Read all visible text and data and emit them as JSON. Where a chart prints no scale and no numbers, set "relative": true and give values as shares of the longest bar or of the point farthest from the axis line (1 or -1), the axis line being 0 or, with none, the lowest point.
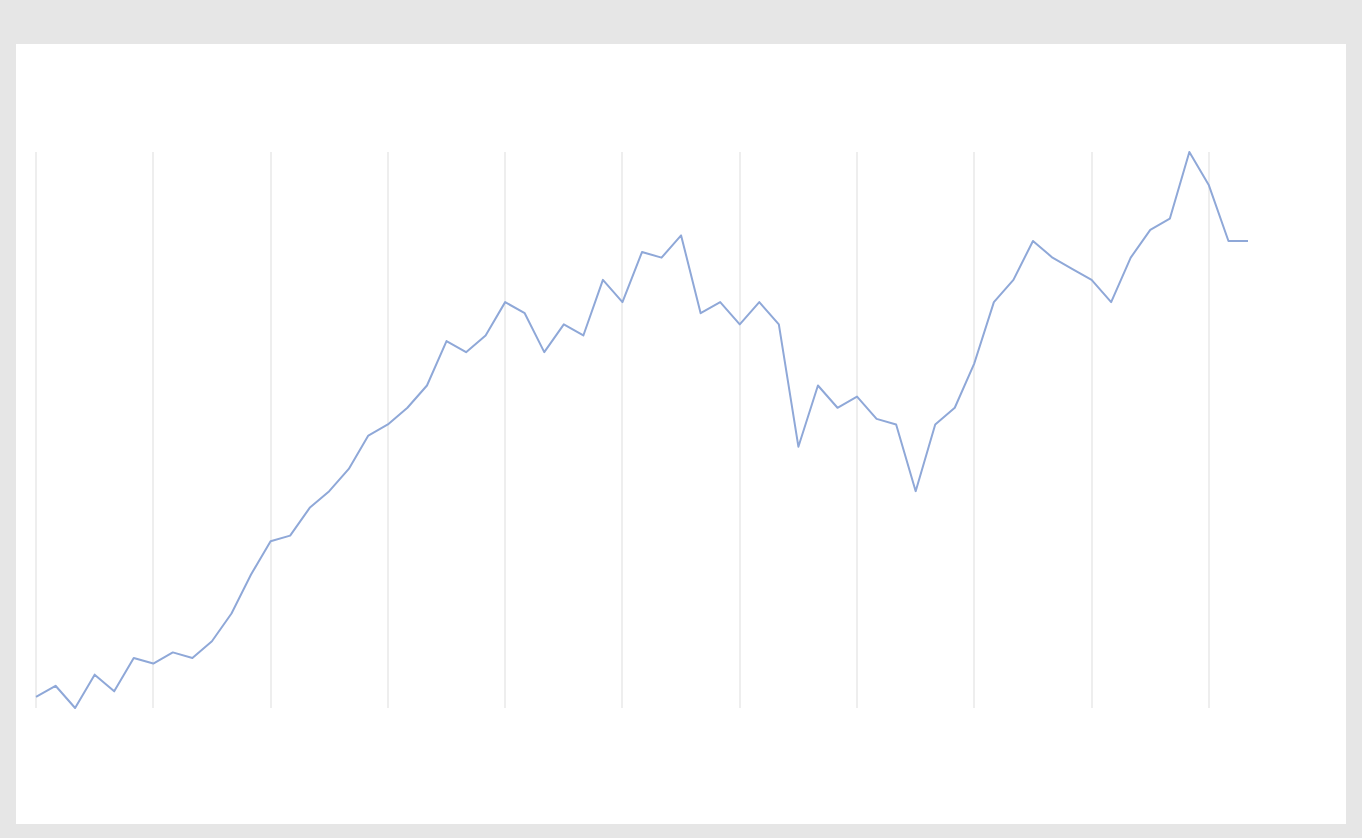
{
  "chart_data": {
    "type": "line",
    "relative": true,
    "grid": true,
    "legend": false,
    "marker": "none",
    "categories": [
      null,
      null,
      null,
      null,
      null,
      null,
      null,
      null,
      null,
      null,
      null,
      null,
      null,
      null,
      null,
      null,
      null,
      null,
      null,
      null,
      null,
      null,
      null,
      null,
      null,
      null,
      null,
      null,
      null,
      null,
      null,
      null,
      null,
      null,
      null,
      null,
      null,
      null,
      null,
      null,
      null,
      null,
      null,
      null,
      null,
      null,
      null,
      null,
      null,
      null,
      null,
      null,
      null,
      null,
      null,
      null,
      null,
      null,
      null,
      null,
      null,
      null,
      null
    ],
    "series": [
      {
        "color": "#8fa8d8",
        "values": [
          0.02,
          0.04,
          0,
          0.06,
          0.03,
          0.09,
          0.08,
          0.1,
          0.09,
          0.12,
          0.17,
          0.24,
          0.3,
          0.31,
          0.36,
          0.39,
          0.43,
          0.49,
          0.51,
          0.54,
          0.58,
          0.66,
          0.64,
          0.67,
          0.73,
          0.71,
          0.64,
          0.69,
          0.67,
          0.77,
          0.73,
          0.82,
          0.81,
          0.85,
          0.71,
          0.73,
          0.69,
          0.73,
          0.69,
          0.47,
          0.58,
          0.54,
          0.56,
          0.52,
          0.51,
          0.39,
          0.51,
          0.54,
          0.62,
          0.73,
          0.77,
          0.84,
          0.81,
          0.79,
          0.77,
          0.73,
          0.81,
          0.86,
          0.88,
          1,
          0.94,
          0.84,
          0.84
        ]
      }
    ]
  }
}
